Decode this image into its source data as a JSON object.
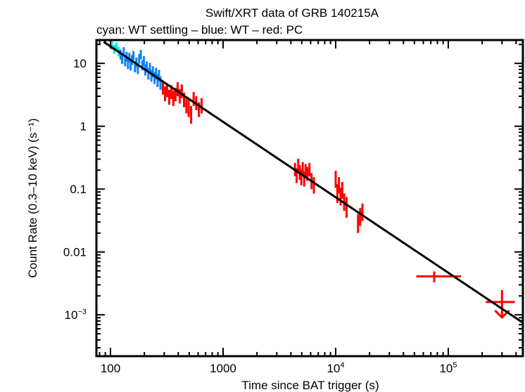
{
  "chart_data": {
    "type": "scatter",
    "title": "Swift/XRT data of GRB 140215A",
    "subtitle": "cyan: WT settling – blue: WT – red: PC",
    "xlabel": "Time since BAT trigger (s)",
    "ylabel": "Count Rate (0.3–10 keV) (s⁻¹)",
    "xscale": "log",
    "yscale": "log",
    "xlim": [
      75,
      460000
    ],
    "ylim": [
      0.00022,
      23.5
    ],
    "grid": false,
    "x_ticks": [
      {
        "value": 100,
        "label": "100",
        "sup": ""
      },
      {
        "value": 1000,
        "label": "1000",
        "sup": ""
      },
      {
        "value": 10000,
        "label": "10",
        "sup": "4"
      },
      {
        "value": 100000,
        "label": "10",
        "sup": "5"
      }
    ],
    "y_ticks": [
      {
        "value": 10,
        "label": "10",
        "sup": ""
      },
      {
        "value": 1,
        "label": "1",
        "sup": ""
      },
      {
        "value": 0.1,
        "label": "0.1",
        "sup": ""
      },
      {
        "value": 0.01,
        "label": "0.01",
        "sup": ""
      },
      {
        "value": 0.001,
        "label": "10",
        "sup": "−3"
      }
    ],
    "series": [
      {
        "name": "WT settling",
        "color": "#00e5e5",
        "points": [
          {
            "t": 103,
            "terr": 2,
            "rate": 19.5,
            "rerr": 3.0
          },
          {
            "t": 108,
            "terr": 2,
            "rate": 17.0,
            "rerr": 2.8
          },
          {
            "t": 113,
            "terr": 2,
            "rate": 18.5,
            "rerr": 3.0
          },
          {
            "t": 118,
            "terr": 2,
            "rate": 15.5,
            "rerr": 2.6
          }
        ]
      },
      {
        "name": "WT",
        "color": "#0a84ff",
        "points": [
          {
            "t": 123,
            "terr": 2,
            "rate": 14.0,
            "rerr": 2.5
          },
          {
            "t": 127,
            "terr": 2,
            "rate": 12.0,
            "rerr": 2.2
          },
          {
            "t": 131,
            "terr": 2,
            "rate": 15.5,
            "rerr": 2.6
          },
          {
            "t": 135,
            "terr": 2,
            "rate": 11.0,
            "rerr": 2.0
          },
          {
            "t": 139,
            "terr": 2,
            "rate": 13.0,
            "rerr": 2.3
          },
          {
            "t": 143,
            "terr": 2,
            "rate": 10.0,
            "rerr": 1.9
          },
          {
            "t": 147,
            "terr": 2,
            "rate": 12.5,
            "rerr": 2.2
          },
          {
            "t": 151,
            "terr": 2,
            "rate": 9.5,
            "rerr": 1.8
          },
          {
            "t": 155,
            "terr": 2,
            "rate": 11.5,
            "rerr": 2.1
          },
          {
            "t": 160,
            "terr": 2,
            "rate": 13.5,
            "rerr": 2.3
          },
          {
            "t": 165,
            "terr": 2,
            "rate": 9.0,
            "rerr": 1.8
          },
          {
            "t": 170,
            "terr": 2,
            "rate": 10.5,
            "rerr": 1.9
          },
          {
            "t": 175,
            "terr": 2,
            "rate": 8.5,
            "rerr": 1.7
          },
          {
            "t": 180,
            "terr": 3,
            "rate": 12.0,
            "rerr": 2.1
          },
          {
            "t": 186,
            "terr": 3,
            "rate": 14.0,
            "rerr": 2.4
          },
          {
            "t": 192,
            "terr": 3,
            "rate": 9.5,
            "rerr": 1.8
          },
          {
            "t": 198,
            "terr": 3,
            "rate": 11.0,
            "rerr": 2.0
          },
          {
            "t": 204,
            "terr": 3,
            "rate": 8.0,
            "rerr": 1.6
          },
          {
            "t": 210,
            "terr": 3,
            "rate": 9.0,
            "rerr": 1.7
          },
          {
            "t": 217,
            "terr": 3,
            "rate": 7.0,
            "rerr": 1.5
          },
          {
            "t": 224,
            "terr": 3,
            "rate": 8.5,
            "rerr": 1.7
          },
          {
            "t": 231,
            "terr": 3,
            "rate": 6.5,
            "rerr": 1.4
          },
          {
            "t": 238,
            "terr": 3,
            "rate": 7.5,
            "rerr": 1.5
          },
          {
            "t": 246,
            "terr": 3,
            "rate": 6.0,
            "rerr": 1.3
          },
          {
            "t": 254,
            "terr": 3,
            "rate": 7.0,
            "rerr": 1.5
          },
          {
            "t": 262,
            "terr": 3,
            "rate": 5.5,
            "rerr": 1.3
          },
          {
            "t": 270,
            "terr": 3,
            "rate": 6.5,
            "rerr": 1.4
          },
          {
            "t": 278,
            "terr": 3,
            "rate": 5.0,
            "rerr": 1.2
          }
        ]
      },
      {
        "name": "PC",
        "color": "#ff0000",
        "points": [
          {
            "t": 292,
            "terr": 6,
            "rate": 4.2,
            "rerr": 1.0
          },
          {
            "t": 305,
            "terr": 6,
            "rate": 3.4,
            "rerr": 0.9
          },
          {
            "t": 318,
            "terr": 6,
            "rate": 3.8,
            "rerr": 0.9
          },
          {
            "t": 332,
            "terr": 7,
            "rate": 3.0,
            "rerr": 0.8
          },
          {
            "t": 347,
            "terr": 7,
            "rate": 3.6,
            "rerr": 0.9
          },
          {
            "t": 362,
            "terr": 7,
            "rate": 2.9,
            "rerr": 0.8
          },
          {
            "t": 378,
            "terr": 8,
            "rate": 3.3,
            "rerr": 0.8
          },
          {
            "t": 395,
            "terr": 8,
            "rate": 4.0,
            "rerr": 1.0
          },
          {
            "t": 412,
            "terr": 8,
            "rate": 3.1,
            "rerr": 0.8
          },
          {
            "t": 430,
            "terr": 9,
            "rate": 3.7,
            "rerr": 0.9
          },
          {
            "t": 450,
            "terr": 9,
            "rate": 2.7,
            "rerr": 0.7
          },
          {
            "t": 472,
            "terr": 10,
            "rate": 2.2,
            "rerr": 0.6
          },
          {
            "t": 495,
            "terr": 10,
            "rate": 2.0,
            "rerr": 0.6
          },
          {
            "t": 520,
            "terr": 11,
            "rate": 1.6,
            "rerr": 0.5
          },
          {
            "t": 548,
            "terr": 12,
            "rate": 2.8,
            "rerr": 0.7
          },
          {
            "t": 578,
            "terr": 13,
            "rate": 2.4,
            "rerr": 0.6
          },
          {
            "t": 610,
            "terr": 14,
            "rate": 1.9,
            "rerr": 0.5
          },
          {
            "t": 645,
            "terr": 15,
            "rate": 2.2,
            "rerr": 0.6
          },
          {
            "t": 4350,
            "terr": 60,
            "rate": 0.21,
            "rerr": 0.05
          },
          {
            "t": 4500,
            "terr": 60,
            "rate": 0.17,
            "rerr": 0.045
          },
          {
            "t": 4650,
            "terr": 65,
            "rate": 0.25,
            "rerr": 0.055
          },
          {
            "t": 4800,
            "terr": 65,
            "rate": 0.19,
            "rerr": 0.05
          },
          {
            "t": 4950,
            "terr": 70,
            "rate": 0.16,
            "rerr": 0.045
          },
          {
            "t": 5100,
            "terr": 70,
            "rate": 0.22,
            "rerr": 0.05
          },
          {
            "t": 5250,
            "terr": 75,
            "rate": 0.15,
            "rerr": 0.04
          },
          {
            "t": 5400,
            "terr": 75,
            "rate": 0.2,
            "rerr": 0.05
          },
          {
            "t": 5600,
            "terr": 80,
            "rate": 0.18,
            "rerr": 0.045
          },
          {
            "t": 5850,
            "terr": 85,
            "rate": 0.21,
            "rerr": 0.05
          },
          {
            "t": 6100,
            "terr": 90,
            "rate": 0.14,
            "rerr": 0.04
          },
          {
            "t": 6400,
            "terr": 95,
            "rate": 0.12,
            "rerr": 0.035
          },
          {
            "t": 10000,
            "terr": 140,
            "rate": 0.15,
            "rerr": 0.045
          },
          {
            "t": 10350,
            "terr": 140,
            "rate": 0.09,
            "rerr": 0.03
          },
          {
            "t": 10700,
            "terr": 150,
            "rate": 0.12,
            "rerr": 0.035
          },
          {
            "t": 11050,
            "terr": 150,
            "rate": 0.08,
            "rerr": 0.025
          },
          {
            "t": 11450,
            "terr": 160,
            "rate": 0.1,
            "rerr": 0.03
          },
          {
            "t": 11900,
            "terr": 170,
            "rate": 0.065,
            "rerr": 0.02
          },
          {
            "t": 12500,
            "terr": 180,
            "rate": 0.055,
            "rerr": 0.02
          },
          {
            "t": 15800,
            "terr": 220,
            "rate": 0.03,
            "rerr": 0.01
          },
          {
            "t": 16500,
            "terr": 230,
            "rate": 0.038,
            "rerr": 0.012
          },
          {
            "t": 17300,
            "terr": 250,
            "rate": 0.045,
            "rerr": 0.014
          },
          {
            "t": 75000,
            "terr_lo": 23000,
            "terr_hi": 55000,
            "rate": 0.0041,
            "rerr": 0.0008
          }
        ],
        "upper_limits": [
          {
            "t": 300000,
            "terr_lo": 85000,
            "terr_hi": 90000,
            "rate": 0.0016
          }
        ]
      }
    ],
    "fit": {
      "type": "power-law",
      "color": "#000000",
      "t_start": 87,
      "t_end": 460000,
      "rate_at_start": 22.0,
      "slope": -1.2
    }
  }
}
